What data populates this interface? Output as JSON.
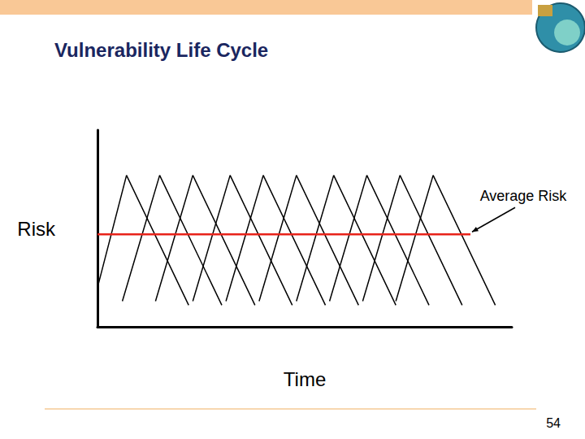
{
  "slide": {
    "title": "Vulnerability Life Cycle",
    "page_number": "54"
  },
  "chart_data": {
    "type": "line",
    "xlabel": "Time",
    "ylabel": "Risk",
    "xlim": [
      0,
      100
    ],
    "ylim": [
      0,
      100
    ],
    "tick_labels": false,
    "grid": false,
    "series": [
      {
        "x": [
          0,
          7,
          22
        ],
        "values": [
          20,
          77,
          11
        ],
        "color": "#000000"
      },
      {
        "x": [
          6,
          15,
          30
        ],
        "values": [
          13,
          77,
          11
        ],
        "color": "#000000"
      },
      {
        "x": [
          14,
          23,
          38
        ],
        "values": [
          13,
          77,
          11
        ],
        "color": "#000000"
      },
      {
        "x": [
          23,
          32,
          47
        ],
        "values": [
          13,
          77,
          11
        ],
        "color": "#000000"
      },
      {
        "x": [
          31,
          40,
          55
        ],
        "values": [
          13,
          77,
          11
        ],
        "color": "#000000"
      },
      {
        "x": [
          39,
          48,
          63
        ],
        "values": [
          13,
          77,
          11
        ],
        "color": "#000000"
      },
      {
        "x": [
          48,
          57,
          72
        ],
        "values": [
          13,
          77,
          11
        ],
        "color": "#000000"
      },
      {
        "x": [
          56,
          65,
          80
        ],
        "values": [
          13,
          77,
          11
        ],
        "color": "#000000"
      },
      {
        "x": [
          64,
          73,
          88
        ],
        "values": [
          13,
          77,
          11
        ],
        "color": "#000000"
      },
      {
        "x": [
          72,
          81,
          96
        ],
        "values": [
          13,
          77,
          11
        ],
        "color": "#000000"
      },
      {
        "name": "Average Risk",
        "x": [
          0,
          90
        ],
        "values": [
          47,
          47
        ],
        "color": "#e8231a"
      }
    ]
  }
}
